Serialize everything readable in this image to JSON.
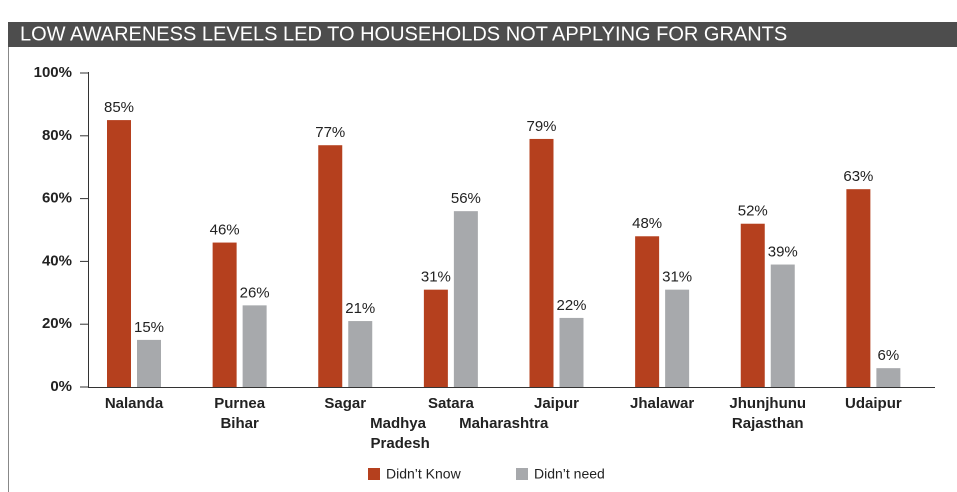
{
  "chart_data": {
    "type": "bar",
    "title": "LOW AWARENESS LEVELS LED TO HOUSEHOLDS NOT APPLYING FOR GRANTS",
    "categories": [
      "Nalanda",
      "Purnea",
      "Sagar",
      "Satara",
      "Jaipur",
      "Jhalawar",
      "Jhunjhunu",
      "Udaipur"
    ],
    "groups": [
      {
        "name": "Bihar",
        "span": 2
      },
      {
        "name": "Madhya Pradesh",
        "span": 1
      },
      {
        "name": "Maharashtra",
        "span": 1
      },
      {
        "name": "Rajasthan",
        "span": 4
      }
    ],
    "series": [
      {
        "name": "Didn’t Know",
        "color": "#b5401e",
        "values": [
          85,
          46,
          77,
          31,
          79,
          48,
          52,
          63
        ],
        "value_labels": [
          "85%",
          "46%",
          "77%",
          "31%",
          "79%",
          "48%",
          "52%",
          "63%"
        ]
      },
      {
        "name": "Didn’t need",
        "color": "#a7a9ac",
        "values": [
          15,
          26,
          21,
          56,
          22,
          31,
          39,
          6
        ],
        "value_labels": [
          "15%",
          "26%",
          "21%",
          "56%",
          "22%",
          "31%",
          "39%",
          "6%"
        ]
      }
    ],
    "ylim": [
      0,
      100
    ],
    "yticks": [
      {
        "value": 0,
        "label": "0%"
      },
      {
        "value": 20,
        "label": "20%"
      },
      {
        "value": 40,
        "label": "40%"
      },
      {
        "value": 60,
        "label": "60%"
      },
      {
        "value": 80,
        "label": "80%"
      },
      {
        "value": 100,
        "label": "100%"
      }
    ],
    "legend": "bottom"
  }
}
